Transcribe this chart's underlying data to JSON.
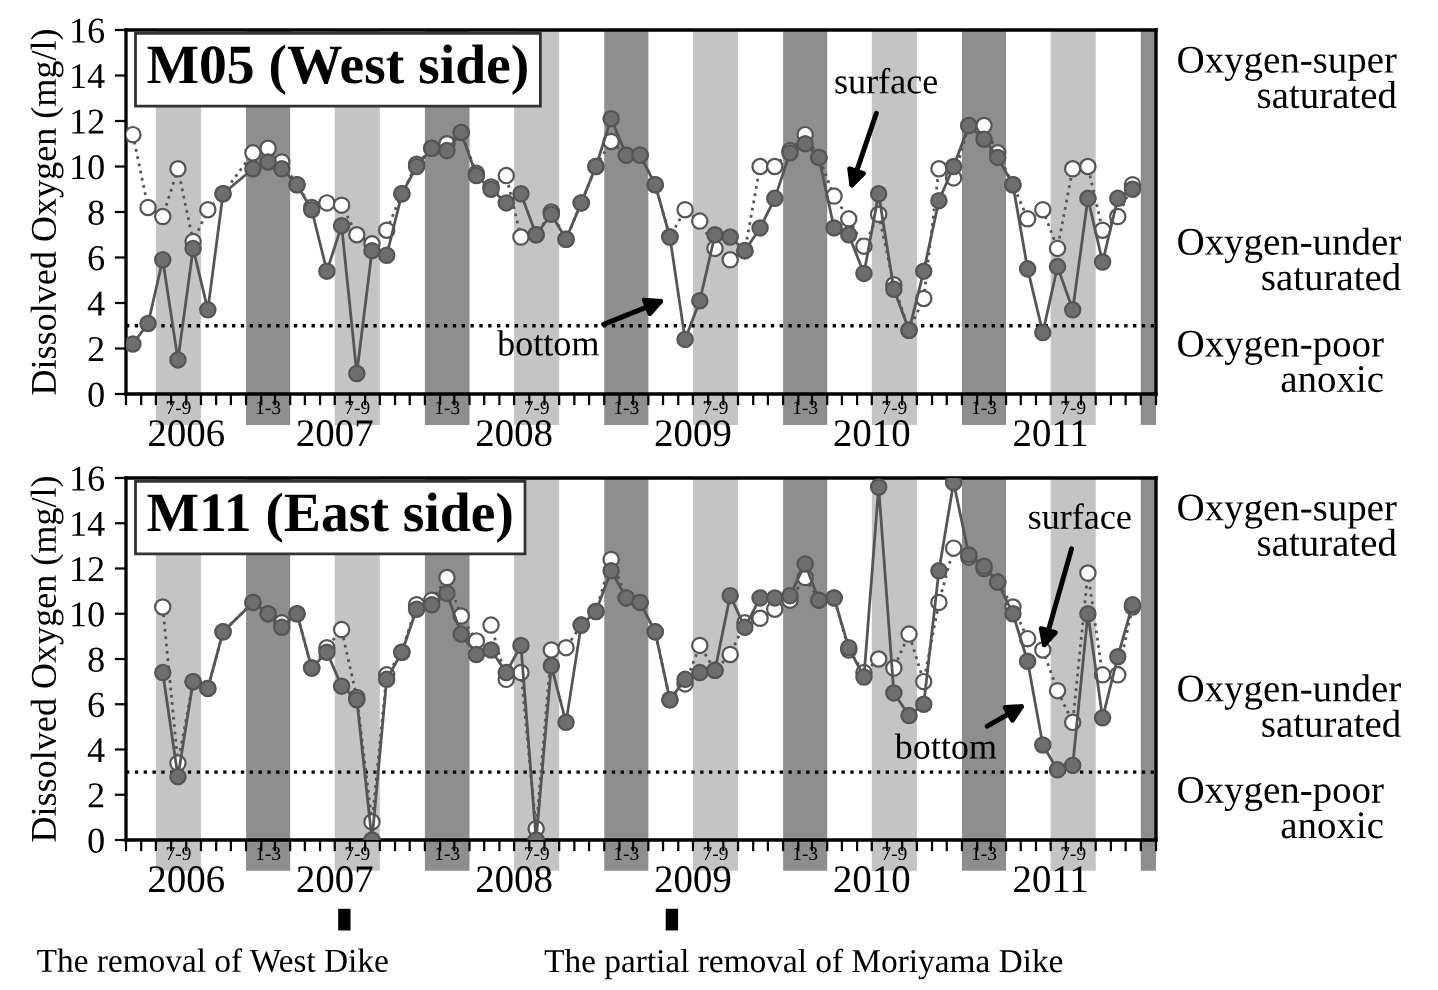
{
  "chart_data": [
    {
      "type": "line",
      "title": "M05 (West side)",
      "ylabel": "Dissolved Oxygen (mg/l)",
      "ylim": [
        0,
        16
      ],
      "yticks": [
        0,
        2,
        4,
        6,
        8,
        10,
        12,
        14,
        16
      ],
      "xlim": [
        "2006-05-01",
        "2012-02-01"
      ],
      "marker": "circle",
      "grid": false,
      "legend": false,
      "series": [
        {
          "color": "#ffffff",
          "line_style": "dotted",
          "x": [
            "2006-05-15",
            "2006-06-15",
            "2006-07-15",
            "2006-08-15",
            "2006-09-15",
            "2006-10-15",
            "2006-11-15",
            "2007-01-15",
            "2007-02-15",
            "2007-03-15",
            "2007-04-15",
            "2007-05-15",
            "2007-06-15",
            "2007-07-15",
            "2007-08-15",
            "2007-09-15",
            "2007-10-15",
            "2007-11-15",
            "2007-12-15",
            "2008-01-15",
            "2008-02-15",
            "2008-03-15",
            "2008-04-15",
            "2008-05-15",
            "2008-06-15",
            "2008-07-15",
            "2008-08-15",
            "2008-09-15",
            "2008-10-15",
            "2008-11-15",
            "2008-12-15",
            "2009-01-15",
            "2009-02-15",
            "2009-03-15",
            "2009-04-15",
            "2009-05-15",
            "2009-06-15",
            "2009-07-15",
            "2009-08-15",
            "2009-09-15",
            "2009-10-15",
            "2009-11-15",
            "2009-12-15",
            "2010-01-15",
            "2010-02-15",
            "2010-03-15",
            "2010-04-15",
            "2010-05-15",
            "2010-06-15",
            "2010-07-15",
            "2010-08-15",
            "2010-09-15",
            "2010-10-15",
            "2010-11-15",
            "2010-12-15",
            "2011-01-15",
            "2011-02-15",
            "2011-03-15",
            "2011-04-15",
            "2011-05-15",
            "2011-06-15",
            "2011-07-15",
            "2011-08-15",
            "2011-09-15",
            "2011-10-15",
            "2011-11-15",
            "2011-12-15"
          ],
          "values": [
            11.4,
            8.2,
            7.8,
            9.9,
            6.7,
            8.1,
            8.8,
            10.6,
            10.8,
            10.2,
            9.2,
            8.2,
            8.4,
            8.3,
            7.0,
            6.6,
            7.2,
            8.8,
            10.1,
            10.8,
            11.0,
            11.5,
            9.7,
            9.1,
            9.6,
            6.9,
            7.0,
            8.0,
            6.8,
            8.4,
            10.0,
            11.1,
            10.5,
            10.5,
            9.2,
            6.9,
            8.1,
            7.6,
            6.4,
            5.9,
            6.3,
            10.0,
            10.0,
            10.7,
            11.4,
            10.4,
            8.7,
            7.7,
            6.5,
            7.9,
            4.8,
            2.8,
            4.2,
            9.9,
            9.5,
            11.8,
            11.8,
            10.6,
            9.2,
            7.7,
            8.1,
            6.4,
            9.9,
            10.0,
            7.2,
            7.8,
            9.2
          ]
        },
        {
          "color": "#6e6e6e",
          "line_style": "solid",
          "x": [
            "2006-05-15",
            "2006-06-15",
            "2006-07-15",
            "2006-08-15",
            "2006-09-15",
            "2006-10-15",
            "2006-11-15",
            "2007-01-15",
            "2007-02-15",
            "2007-03-15",
            "2007-04-15",
            "2007-05-15",
            "2007-06-15",
            "2007-07-15",
            "2007-08-15",
            "2007-09-15",
            "2007-10-15",
            "2007-11-15",
            "2007-12-15",
            "2008-01-15",
            "2008-02-15",
            "2008-03-15",
            "2008-04-15",
            "2008-05-15",
            "2008-06-15",
            "2008-07-15",
            "2008-08-15",
            "2008-09-15",
            "2008-10-15",
            "2008-11-15",
            "2008-12-15",
            "2009-01-15",
            "2009-02-15",
            "2009-03-15",
            "2009-04-15",
            "2009-05-15",
            "2009-06-15",
            "2009-07-15",
            "2009-08-15",
            "2009-09-15",
            "2009-10-15",
            "2009-11-15",
            "2009-12-15",
            "2010-01-15",
            "2010-02-15",
            "2010-03-15",
            "2010-04-15",
            "2010-05-15",
            "2010-06-15",
            "2010-07-15",
            "2010-08-15",
            "2010-09-15",
            "2010-10-15",
            "2010-11-15",
            "2010-12-15",
            "2011-01-15",
            "2011-02-15",
            "2011-03-15",
            "2011-04-15",
            "2011-05-15",
            "2011-06-15",
            "2011-07-15",
            "2011-08-15",
            "2011-09-15",
            "2011-10-15",
            "2011-11-15",
            "2011-12-15"
          ],
          "values": [
            2.2,
            3.1,
            5.9,
            1.5,
            6.4,
            3.7,
            8.8,
            9.9,
            10.2,
            9.9,
            9.2,
            8.1,
            5.4,
            7.4,
            0.9,
            6.3,
            6.1,
            8.8,
            10.0,
            10.8,
            10.7,
            11.5,
            9.6,
            9.0,
            8.4,
            8.8,
            7.0,
            7.9,
            6.8,
            8.4,
            10.0,
            12.1,
            10.5,
            10.5,
            9.2,
            6.9,
            2.4,
            4.1,
            7.0,
            6.9,
            6.3,
            7.3,
            8.6,
            10.6,
            11.0,
            10.4,
            7.3,
            7.0,
            5.3,
            8.8,
            4.6,
            2.8,
            5.4,
            8.5,
            10.0,
            11.8,
            11.2,
            10.4,
            9.2,
            5.5,
            2.7,
            5.6,
            3.7,
            8.6,
            5.8,
            8.6,
            9.0
          ]
        }
      ],
      "ref_lines": [
        {
          "axis": "y",
          "value": 3,
          "color": "#000000",
          "line_style": "dotted"
        }
      ],
      "bands": [
        {
          "axis": "x",
          "from": "2006-07-01",
          "to": "2006-10-01",
          "label": "7-9",
          "color": "#c4c4c4"
        },
        {
          "axis": "x",
          "from": "2007-01-01",
          "to": "2007-04-01",
          "label": "1-3",
          "color": "#8e8e8e"
        },
        {
          "axis": "x",
          "from": "2007-07-01",
          "to": "2007-10-01",
          "label": "7-9",
          "color": "#c4c4c4"
        },
        {
          "axis": "x",
          "from": "2008-01-01",
          "to": "2008-04-01",
          "label": "1-3",
          "color": "#8e8e8e"
        },
        {
          "axis": "x",
          "from": "2008-07-01",
          "to": "2008-10-01",
          "label": "7-9",
          "color": "#c4c4c4"
        },
        {
          "axis": "x",
          "from": "2009-01-01",
          "to": "2009-04-01",
          "label": "1-3",
          "color": "#8e8e8e"
        },
        {
          "axis": "x",
          "from": "2009-07-01",
          "to": "2009-10-01",
          "label": "7-9",
          "color": "#c4c4c4"
        },
        {
          "axis": "x",
          "from": "2010-01-01",
          "to": "2010-04-01",
          "label": "1-3",
          "color": "#8e8e8e"
        },
        {
          "axis": "x",
          "from": "2010-07-01",
          "to": "2010-10-01",
          "label": "7-9",
          "color": "#c4c4c4"
        },
        {
          "axis": "x",
          "from": "2011-01-01",
          "to": "2011-04-01",
          "label": "1-3",
          "color": "#8e8e8e"
        },
        {
          "axis": "x",
          "from": "2011-07-01",
          "to": "2011-10-01",
          "label": "7-9",
          "color": "#c4c4c4"
        },
        {
          "axis": "x",
          "from": "2012-01-01",
          "to": "2012-02-01",
          "label": null,
          "color": "#8e8e8e"
        }
      ],
      "xticks": [
        {
          "value": "2006-05-01",
          "label": null
        },
        {
          "value": "2006-06-01",
          "label": null
        },
        {
          "value": "2006-07-01",
          "label": null
        },
        {
          "value": "2006-08-01",
          "label": null
        },
        {
          "value": "2006-09-01",
          "label": "2006"
        },
        {
          "value": "2006-10-01",
          "label": null
        },
        {
          "value": "2006-11-01",
          "label": null
        },
        {
          "value": "2006-12-01",
          "label": null
        },
        {
          "value": "2007-01-01",
          "label": null
        },
        {
          "value": "2007-02-01",
          "label": null
        },
        {
          "value": "2007-03-01",
          "label": null
        },
        {
          "value": "2007-04-01",
          "label": null
        },
        {
          "value": "2007-05-01",
          "label": null
        },
        {
          "value": "2007-06-01",
          "label": null
        },
        {
          "value": "2007-07-01",
          "label": "2007"
        },
        {
          "value": "2007-08-01",
          "label": null
        },
        {
          "value": "2007-09-01",
          "label": null
        },
        {
          "value": "2007-10-01",
          "label": null
        },
        {
          "value": "2007-11-01",
          "label": null
        },
        {
          "value": "2007-12-01",
          "label": null
        },
        {
          "value": "2008-01-01",
          "label": null
        },
        {
          "value": "2008-02-01",
          "label": null
        },
        {
          "value": "2008-03-01",
          "label": null
        },
        {
          "value": "2008-04-01",
          "label": null
        },
        {
          "value": "2008-05-01",
          "label": null
        },
        {
          "value": "2008-06-01",
          "label": null
        },
        {
          "value": "2008-07-01",
          "label": "2008"
        },
        {
          "value": "2008-08-01",
          "label": null
        },
        {
          "value": "2008-09-01",
          "label": null
        },
        {
          "value": "2008-10-01",
          "label": null
        },
        {
          "value": "2008-11-01",
          "label": null
        },
        {
          "value": "2008-12-01",
          "label": null
        },
        {
          "value": "2009-01-01",
          "label": null
        },
        {
          "value": "2009-02-01",
          "label": null
        },
        {
          "value": "2009-03-01",
          "label": null
        },
        {
          "value": "2009-04-01",
          "label": null
        },
        {
          "value": "2009-05-01",
          "label": null
        },
        {
          "value": "2009-06-01",
          "label": null
        },
        {
          "value": "2009-07-01",
          "label": "2009"
        },
        {
          "value": "2009-08-01",
          "label": null
        },
        {
          "value": "2009-09-01",
          "label": null
        },
        {
          "value": "2009-10-01",
          "label": null
        },
        {
          "value": "2009-11-01",
          "label": null
        },
        {
          "value": "2009-12-01",
          "label": null
        },
        {
          "value": "2010-01-01",
          "label": null
        },
        {
          "value": "2010-02-01",
          "label": null
        },
        {
          "value": "2010-03-01",
          "label": null
        },
        {
          "value": "2010-04-01",
          "label": null
        },
        {
          "value": "2010-05-01",
          "label": null
        },
        {
          "value": "2010-06-01",
          "label": null
        },
        {
          "value": "2010-07-01",
          "label": "2010"
        },
        {
          "value": "2010-08-01",
          "label": null
        },
        {
          "value": "2010-09-01",
          "label": null
        },
        {
          "value": "2010-10-01",
          "label": null
        },
        {
          "value": "2010-11-01",
          "label": null
        },
        {
          "value": "2010-12-01",
          "label": null
        },
        {
          "value": "2011-01-01",
          "label": null
        },
        {
          "value": "2011-02-01",
          "label": null
        },
        {
          "value": "2011-03-01",
          "label": null
        },
        {
          "value": "2011-04-01",
          "label": null
        },
        {
          "value": "2011-05-01",
          "label": null
        },
        {
          "value": "2011-06-01",
          "label": null
        },
        {
          "value": "2011-07-01",
          "label": "2011"
        },
        {
          "value": "2011-08-01",
          "label": null
        },
        {
          "value": "2011-09-01",
          "label": null
        },
        {
          "value": "2011-10-01",
          "label": null
        },
        {
          "value": "2011-11-01",
          "label": null
        },
        {
          "value": "2011-12-01",
          "label": null
        },
        {
          "value": "2012-01-01",
          "label": null
        },
        {
          "value": "2012-02-01",
          "label": null
        }
      ],
      "annotations": [
        "Oxygen-super\nsaturated",
        "Oxygen-under\nsaturated",
        "Oxygen-poor\nanoxic",
        "surface",
        "bottom"
      ]
    },
    {
      "type": "line",
      "title": "M11 (East side)",
      "ylabel": "Dissolved Oxygen (mg/l)",
      "ylim": [
        0,
        16
      ],
      "yticks": [
        0,
        2,
        4,
        6,
        8,
        10,
        12,
        14,
        16
      ],
      "xlim": [
        "2006-05-01",
        "2012-02-01"
      ],
      "marker": "circle",
      "grid": false,
      "legend": false,
      "series": [
        {
          "color": "#ffffff",
          "line_style": "dotted",
          "x": [
            "2006-07-15",
            "2006-08-15",
            "2006-09-15",
            "2006-10-15",
            "2006-11-15",
            "2007-01-15",
            "2007-02-15",
            "2007-03-15",
            "2007-04-15",
            "2007-05-15",
            "2007-06-15",
            "2007-07-15",
            "2007-08-15",
            "2007-09-15",
            "2007-10-15",
            "2007-11-15",
            "2007-12-15",
            "2008-01-15",
            "2008-02-15",
            "2008-03-15",
            "2008-04-15",
            "2008-05-15",
            "2008-06-15",
            "2008-07-15",
            "2008-08-15",
            "2008-09-15",
            "2008-10-15",
            "2008-11-15",
            "2008-12-15",
            "2009-01-15",
            "2009-02-15",
            "2009-03-15",
            "2009-04-15",
            "2009-05-15",
            "2009-06-15",
            "2009-07-15",
            "2009-08-15",
            "2009-09-15",
            "2009-10-15",
            "2009-11-15",
            "2009-12-15",
            "2010-01-15",
            "2010-02-15",
            "2010-03-15",
            "2010-04-15",
            "2010-05-15",
            "2010-06-15",
            "2010-07-15",
            "2010-08-15",
            "2010-09-15",
            "2010-10-15",
            "2010-11-15",
            "2010-12-15",
            "2011-01-15",
            "2011-02-15",
            "2011-03-15",
            "2011-04-15",
            "2011-05-15",
            "2011-06-15",
            "2011-07-15",
            "2011-08-15",
            "2011-09-15",
            "2011-10-15",
            "2011-11-15",
            "2011-12-15"
          ],
          "values": [
            10.3,
            3.4,
            7.0,
            6.7,
            9.2,
            10.5,
            10.0,
            9.6,
            10.0,
            7.6,
            8.5,
            9.3,
            6.3,
            0.8,
            7.3,
            8.3,
            10.4,
            10.6,
            11.6,
            9.9,
            8.8,
            9.5,
            7.1,
            7.4,
            0.5,
            8.4,
            8.5,
            9.5,
            10.1,
            12.4,
            10.7,
            10.5,
            9.2,
            6.2,
            6.9,
            8.6,
            7.5,
            8.2,
            9.6,
            9.8,
            10.2,
            10.6,
            11.6,
            10.6,
            10.7,
            8.4,
            7.4,
            8.0,
            7.6,
            9.1,
            7.0,
            10.5,
            12.9,
            12.5,
            12.0,
            11.4,
            10.3,
            8.9,
            8.4,
            6.6,
            5.2,
            11.8,
            7.3,
            7.3,
            10.3
          ]
        },
        {
          "color": "#6e6e6e",
          "line_style": "solid",
          "x": [
            "2006-07-15",
            "2006-08-15",
            "2006-09-15",
            "2006-10-15",
            "2006-11-15",
            "2007-01-15",
            "2007-02-15",
            "2007-03-15",
            "2007-04-15",
            "2007-05-15",
            "2007-06-15",
            "2007-07-15",
            "2007-08-15",
            "2007-09-15",
            "2007-10-15",
            "2007-11-15",
            "2007-12-15",
            "2008-01-15",
            "2008-02-15",
            "2008-03-15",
            "2008-04-15",
            "2008-05-15",
            "2008-06-15",
            "2008-07-15",
            "2008-08-15",
            "2008-09-15",
            "2008-10-15",
            "2008-11-15",
            "2008-12-15",
            "2009-01-15",
            "2009-02-15",
            "2009-03-15",
            "2009-04-15",
            "2009-05-15",
            "2009-06-15",
            "2009-07-15",
            "2009-08-15",
            "2009-09-15",
            "2009-10-15",
            "2009-11-15",
            "2009-12-15",
            "2010-01-15",
            "2010-02-15",
            "2010-03-15",
            "2010-04-15",
            "2010-05-15",
            "2010-06-15",
            "2010-07-15",
            "2010-08-15",
            "2010-09-15",
            "2010-10-15",
            "2010-11-15",
            "2010-12-15",
            "2011-01-15",
            "2011-02-15",
            "2011-03-15",
            "2011-04-15",
            "2011-05-15",
            "2011-06-15",
            "2011-07-15",
            "2011-08-15",
            "2011-09-15",
            "2011-10-15",
            "2011-11-15",
            "2011-12-15"
          ],
          "values": [
            7.4,
            2.8,
            7.0,
            6.7,
            9.2,
            10.5,
            10.0,
            9.4,
            10.0,
            7.6,
            8.3,
            6.8,
            6.2,
            0.0,
            7.1,
            8.3,
            10.2,
            10.4,
            10.9,
            9.1,
            8.2,
            8.4,
            7.4,
            8.6,
            0.0,
            7.7,
            5.2,
            9.5,
            10.1,
            11.9,
            10.7,
            10.5,
            9.2,
            6.2,
            7.1,
            7.4,
            7.5,
            10.8,
            9.4,
            10.7,
            10.7,
            10.8,
            12.2,
            10.6,
            10.7,
            8.5,
            7.2,
            15.6,
            6.5,
            5.5,
            6.0,
            11.9,
            15.8,
            12.6,
            12.1,
            11.4,
            10.0,
            7.9,
            4.2,
            3.1,
            3.3,
            10.0,
            5.4,
            8.1,
            10.4
          ]
        }
      ],
      "ref_lines": [
        {
          "axis": "y",
          "value": 3,
          "color": "#000000",
          "line_style": "dotted"
        }
      ],
      "bands": [
        {
          "axis": "x",
          "from": "2006-07-01",
          "to": "2006-10-01",
          "label": "7-9",
          "color": "#c4c4c4"
        },
        {
          "axis": "x",
          "from": "2007-01-01",
          "to": "2007-04-01",
          "label": "1-3",
          "color": "#8e8e8e"
        },
        {
          "axis": "x",
          "from": "2007-07-01",
          "to": "2007-10-01",
          "label": "7-9",
          "color": "#c4c4c4"
        },
        {
          "axis": "x",
          "from": "2008-01-01",
          "to": "2008-04-01",
          "label": "1-3",
          "color": "#8e8e8e"
        },
        {
          "axis": "x",
          "from": "2008-07-01",
          "to": "2008-10-01",
          "label": "7-9",
          "color": "#c4c4c4"
        },
        {
          "axis": "x",
          "from": "2009-01-01",
          "to": "2009-04-01",
          "label": "1-3",
          "color": "#8e8e8e"
        },
        {
          "axis": "x",
          "from": "2009-07-01",
          "to": "2009-10-01",
          "label": "7-9",
          "color": "#c4c4c4"
        },
        {
          "axis": "x",
          "from": "2010-01-01",
          "to": "2010-04-01",
          "label": "1-3",
          "color": "#8e8e8e"
        },
        {
          "axis": "x",
          "from": "2010-07-01",
          "to": "2010-10-01",
          "label": "7-9",
          "color": "#c4c4c4"
        },
        {
          "axis": "x",
          "from": "2011-01-01",
          "to": "2011-04-01",
          "label": "1-3",
          "color": "#8e8e8e"
        },
        {
          "axis": "x",
          "from": "2011-07-01",
          "to": "2011-10-01",
          "label": "7-9",
          "color": "#c4c4c4"
        },
        {
          "axis": "x",
          "from": "2012-01-01",
          "to": "2012-02-01",
          "label": null,
          "color": "#8e8e8e"
        }
      ],
      "xticks": [
        {
          "value": "2006-05-01",
          "label": null
        },
        {
          "value": "2006-06-01",
          "label": null
        },
        {
          "value": "2006-07-01",
          "label": null
        },
        {
          "value": "2006-08-01",
          "label": null
        },
        {
          "value": "2006-09-01",
          "label": "2006"
        },
        {
          "value": "2006-10-01",
          "label": null
        },
        {
          "value": "2006-11-01",
          "label": null
        },
        {
          "value": "2006-12-01",
          "label": null
        },
        {
          "value": "2007-01-01",
          "label": null
        },
        {
          "value": "2007-02-01",
          "label": null
        },
        {
          "value": "2007-03-01",
          "label": null
        },
        {
          "value": "2007-04-01",
          "label": null
        },
        {
          "value": "2007-05-01",
          "label": null
        },
        {
          "value": "2007-06-01",
          "label": null
        },
        {
          "value": "2007-07-01",
          "label": "2007"
        },
        {
          "value": "2007-08-01",
          "label": null
        },
        {
          "value": "2007-09-01",
          "label": null
        },
        {
          "value": "2007-10-01",
          "label": null
        },
        {
          "value": "2007-11-01",
          "label": null
        },
        {
          "value": "2007-12-01",
          "label": null
        },
        {
          "value": "2008-01-01",
          "label": null
        },
        {
          "value": "2008-02-01",
          "label": null
        },
        {
          "value": "2008-03-01",
          "label": null
        },
        {
          "value": "2008-04-01",
          "label": null
        },
        {
          "value": "2008-05-01",
          "label": null
        },
        {
          "value": "2008-06-01",
          "label": null
        },
        {
          "value": "2008-07-01",
          "label": "2008"
        },
        {
          "value": "2008-08-01",
          "label": null
        },
        {
          "value": "2008-09-01",
          "label": null
        },
        {
          "value": "2008-10-01",
          "label": null
        },
        {
          "value": "2008-11-01",
          "label": null
        },
        {
          "value": "2008-12-01",
          "label": null
        },
        {
          "value": "2009-01-01",
          "label": null
        },
        {
          "value": "2009-02-01",
          "label": null
        },
        {
          "value": "2009-03-01",
          "label": null
        },
        {
          "value": "2009-04-01",
          "label": null
        },
        {
          "value": "2009-05-01",
          "label": null
        },
        {
          "value": "2009-06-01",
          "label": null
        },
        {
          "value": "2009-07-01",
          "label": "2009"
        },
        {
          "value": "2009-08-01",
          "label": null
        },
        {
          "value": "2009-09-01",
          "label": null
        },
        {
          "value": "2009-10-01",
          "label": null
        },
        {
          "value": "2009-11-01",
          "label": null
        },
        {
          "value": "2009-12-01",
          "label": null
        },
        {
          "value": "2010-01-01",
          "label": null
        },
        {
          "value": "2010-02-01",
          "label": null
        },
        {
          "value": "2010-03-01",
          "label": null
        },
        {
          "value": "2010-04-01",
          "label": null
        },
        {
          "value": "2010-05-01",
          "label": null
        },
        {
          "value": "2010-06-01",
          "label": null
        },
        {
          "value": "2010-07-01",
          "label": "2010"
        },
        {
          "value": "2010-08-01",
          "label": null
        },
        {
          "value": "2010-09-01",
          "label": null
        },
        {
          "value": "2010-10-01",
          "label": null
        },
        {
          "value": "2010-11-01",
          "label": null
        },
        {
          "value": "2010-12-01",
          "label": null
        },
        {
          "value": "2011-01-01",
          "label": null
        },
        {
          "value": "2011-02-01",
          "label": null
        },
        {
          "value": "2011-03-01",
          "label": null
        },
        {
          "value": "2011-04-01",
          "label": null
        },
        {
          "value": "2011-05-01",
          "label": null
        },
        {
          "value": "2011-06-01",
          "label": null
        },
        {
          "value": "2011-07-01",
          "label": "2011"
        },
        {
          "value": "2011-08-01",
          "label": null
        },
        {
          "value": "2011-09-01",
          "label": null
        },
        {
          "value": "2011-10-01",
          "label": null
        },
        {
          "value": "2011-11-01",
          "label": null
        },
        {
          "value": "2011-12-01",
          "label": null
        },
        {
          "value": "2012-01-01",
          "label": null
        },
        {
          "value": "2012-02-01",
          "label": null
        }
      ],
      "annotations": [
        "Oxygen-super\nsaturated",
        "Oxygen-under\nsaturated",
        "Oxygen-poor\nanoxic",
        {
          "text": "surface",
          "x": "2011-06-15",
          "y": 8.4
        },
        "bottom",
        "The removal of West Dike",
        "The partial removal of Moriyama Dike"
      ]
    }
  ]
}
